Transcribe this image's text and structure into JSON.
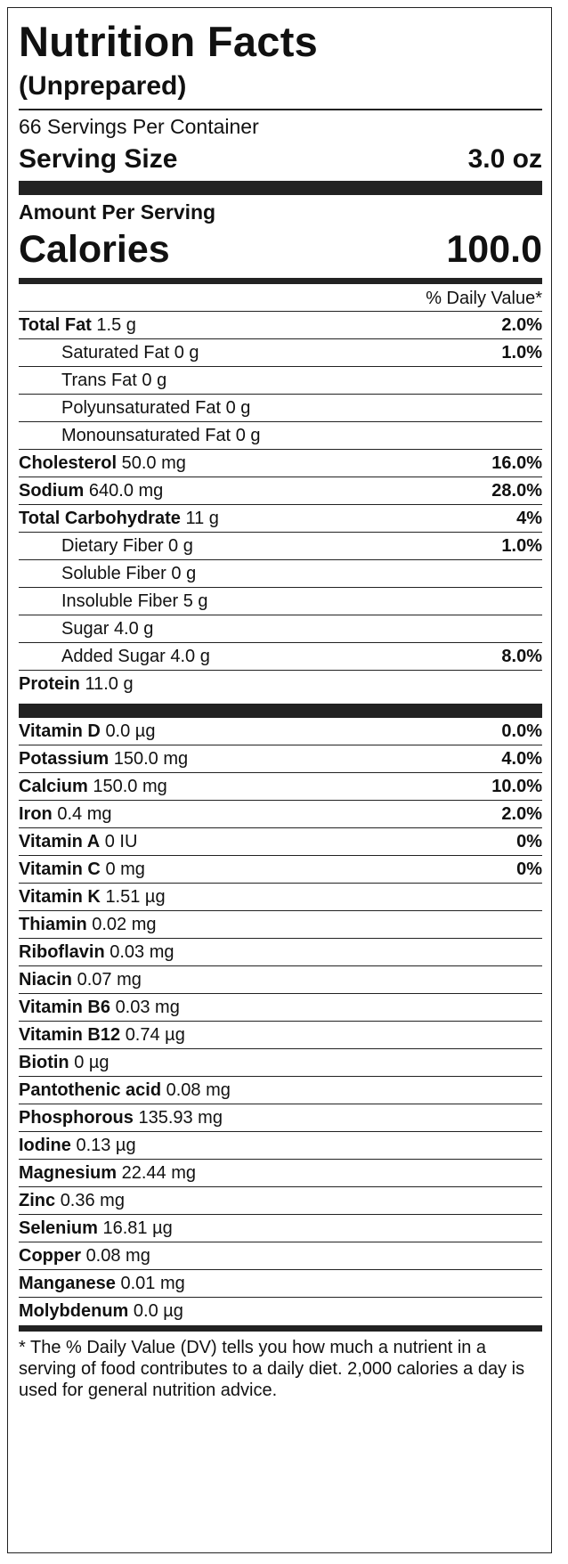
{
  "title": "Nutrition Facts",
  "subtitle": "(Unprepared)",
  "servings_per_container": "66 Servings Per Container",
  "serving_size": {
    "label": "Serving Size",
    "value": "3.0 oz"
  },
  "amount_per_serving": "Amount Per Serving",
  "calories": {
    "label": "Calories",
    "value": "100.0"
  },
  "daily_value_header": "% Daily Value*",
  "nutrients": [
    {
      "name": "Total Fat",
      "amount": "1.5 g",
      "dv": "2.0%"
    },
    {
      "name": "Saturated Fat",
      "amount": "0 g",
      "dv": "1.0%"
    },
    {
      "name": "Trans Fat",
      "amount": "0 g",
      "dv": ""
    },
    {
      "name": "Polyunsaturated Fat",
      "amount": "0 g",
      "dv": ""
    },
    {
      "name": "Monounsaturated Fat",
      "amount": "0 g",
      "dv": ""
    },
    {
      "name": "Cholesterol",
      "amount": "50.0 mg",
      "dv": "16.0%"
    },
    {
      "name": "Sodium",
      "amount": "640.0 mg",
      "dv": "28.0%"
    },
    {
      "name": "Total Carbohydrate",
      "amount": "11 g",
      "dv": "4%"
    },
    {
      "name": "Dietary Fiber",
      "amount": "0 g",
      "dv": "1.0%"
    },
    {
      "name": "Soluble Fiber",
      "amount": "0 g",
      "dv": ""
    },
    {
      "name": "Insoluble Fiber",
      "amount": "5 g",
      "dv": ""
    },
    {
      "name": "Sugar",
      "amount": "4.0 g",
      "dv": ""
    },
    {
      "name": "Added Sugar",
      "amount": "4.0 g",
      "dv": "8.0%"
    },
    {
      "name": "Protein",
      "amount": "11.0 g",
      "dv": ""
    }
  ],
  "vitamins": [
    {
      "name": "Vitamin D",
      "amount": "0.0 µg",
      "dv": "0.0%"
    },
    {
      "name": "Potassium",
      "amount": "150.0 mg",
      "dv": "4.0%"
    },
    {
      "name": "Calcium",
      "amount": "150.0 mg",
      "dv": "10.0%"
    },
    {
      "name": "Iron",
      "amount": "0.4 mg",
      "dv": "2.0%"
    },
    {
      "name": "Vitamin A",
      "amount": "0 IU",
      "dv": "0%"
    },
    {
      "name": "Vitamin C",
      "amount": "0 mg",
      "dv": "0%"
    },
    {
      "name": "Vitamin K",
      "amount": "1.51 µg",
      "dv": ""
    },
    {
      "name": "Thiamin",
      "amount": "0.02 mg",
      "dv": ""
    },
    {
      "name": "Riboflavin",
      "amount": "0.03 mg",
      "dv": ""
    },
    {
      "name": "Niacin",
      "amount": "0.07 mg",
      "dv": ""
    },
    {
      "name": "Vitamin B6",
      "amount": "0.03 mg",
      "dv": ""
    },
    {
      "name": "Vitamin B12",
      "amount": "0.74 µg",
      "dv": ""
    },
    {
      "name": "Biotin",
      "amount": "0 µg",
      "dv": ""
    },
    {
      "name": "Pantothenic acid",
      "amount": "0.08 mg",
      "dv": ""
    },
    {
      "name": "Phosphorous",
      "amount": "135.93 mg",
      "dv": ""
    },
    {
      "name": "Iodine",
      "amount": "0.13 µg",
      "dv": ""
    },
    {
      "name": "Magnesium",
      "amount": "22.44 mg",
      "dv": ""
    },
    {
      "name": "Zinc",
      "amount": "0.36 mg",
      "dv": ""
    },
    {
      "name": "Selenium",
      "amount": "16.81 µg",
      "dv": ""
    },
    {
      "name": "Copper",
      "amount": "0.08 mg",
      "dv": ""
    },
    {
      "name": "Manganese",
      "amount": "0.01 mg",
      "dv": ""
    },
    {
      "name": "Molybdenum",
      "amount": "0.0 µg",
      "dv": ""
    }
  ],
  "footnote": "* The % Daily Value (DV) tells you how much a nutrient in a serving of food contributes to a daily diet. 2,000 calories a day is used for general nutrition advice."
}
